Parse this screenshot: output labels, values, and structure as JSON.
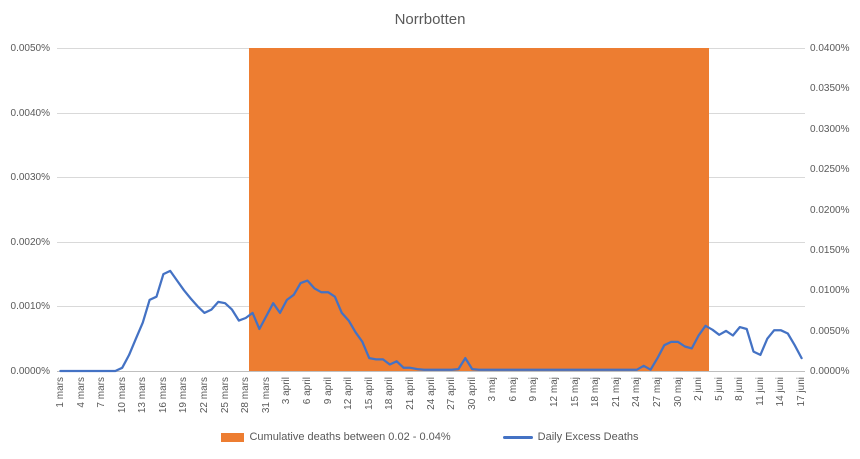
{
  "title": "Norrbotten",
  "colors": {
    "band_fill": "#ED7D31",
    "line_stroke": "#4472C4",
    "gridline": "#D9D9D9",
    "axis_text": "#595959",
    "title_text": "#595959"
  },
  "chart_data": {
    "type": "line",
    "title": "Norrbotten",
    "grid": "horizontal",
    "legend_position": "bottom",
    "left_axis": {
      "ticks": [
        "0.0050%",
        "0.0040%",
        "0.0030%",
        "0.0020%",
        "0.0010%",
        "0.0000%"
      ],
      "min": 0,
      "max": 0.005,
      "unit": "%"
    },
    "right_axis": {
      "ticks": [
        "0.0400%",
        "0.0350%",
        "0.0300%",
        "0.0250%",
        "0.0200%",
        "0.0150%",
        "0.0100%",
        "0.0050%",
        "0.0000%"
      ],
      "min": 0,
      "max": 0.04,
      "unit": "%"
    },
    "x_axis": {
      "start": "1 mars",
      "end": "17 juni",
      "frequency": "daily",
      "total_days": 109,
      "tick_labels": [
        "1 mars",
        "4 mars",
        "7 mars",
        "10 mars",
        "13 mars",
        "16 mars",
        "19 mars",
        "22 mars",
        "25 mars",
        "28 mars",
        "31 mars",
        "3 april",
        "6 april",
        "9 april",
        "12 april",
        "15 april",
        "18 april",
        "21 april",
        "24 april",
        "27 april",
        "30 april",
        "3 maj",
        "6 maj",
        "9 maj",
        "12 maj",
        "15 maj",
        "18 maj",
        "21 maj",
        "24 maj",
        "27 maj",
        "30 maj",
        "2 juni",
        "5 juni",
        "8 juni",
        "11 juni",
        "14 juni",
        "17 juni"
      ],
      "tick_step_days": 3
    },
    "series": [
      {
        "name": "Cumulative deaths between 0.02 - 0.04%",
        "type": "bar-band",
        "axis": "right",
        "value": 0.04,
        "start_date": "29 mars",
        "end_date": "3 juni",
        "start_day_index": 28,
        "end_day_index": 94
      },
      {
        "name": "Daily Excess Deaths",
        "type": "line",
        "axis": "left",
        "values": [
          0,
          0,
          0,
          0,
          0,
          0,
          0,
          0,
          0,
          5e-05,
          0.00025,
          0.0005,
          0.00075,
          0.0011,
          0.00115,
          0.0015,
          0.00155,
          0.0014,
          0.00125,
          0.00112,
          0.001,
          0.0009,
          0.00095,
          0.00107,
          0.00105,
          0.00095,
          0.00078,
          0.00082,
          0.0009,
          0.00065,
          0.00085,
          0.00105,
          0.0009,
          0.0011,
          0.00118,
          0.00136,
          0.0014,
          0.00128,
          0.00122,
          0.00122,
          0.00115,
          0.0009,
          0.00078,
          0.0006,
          0.00045,
          0.0002,
          0.00018,
          0.00018,
          0.0001,
          0.00015,
          5e-05,
          5e-05,
          3e-05,
          2e-05,
          2e-05,
          2e-05,
          2e-05,
          2e-05,
          3e-05,
          0.0002,
          3e-05,
          2e-05,
          2e-05,
          2e-05,
          2e-05,
          2e-05,
          2e-05,
          2e-05,
          2e-05,
          2e-05,
          2e-05,
          2e-05,
          2e-05,
          2e-05,
          2e-05,
          2e-05,
          2e-05,
          2e-05,
          2e-05,
          2e-05,
          2e-05,
          2e-05,
          2e-05,
          2e-05,
          2e-05,
          8e-05,
          2e-05,
          0.0002,
          0.0004,
          0.00045,
          0.00045,
          0.00038,
          0.00035,
          0.00055,
          0.0007,
          0.00064,
          0.00056,
          0.00062,
          0.00055,
          0.00068,
          0.00065,
          0.0003,
          0.00025,
          0.0005,
          0.00063,
          0.00063,
          0.00058,
          0.0004,
          0.0002
        ]
      }
    ]
  },
  "legend": {
    "band_label": "Cumulative deaths between 0.02 - 0.04%",
    "line_label": "Daily Excess Deaths"
  }
}
